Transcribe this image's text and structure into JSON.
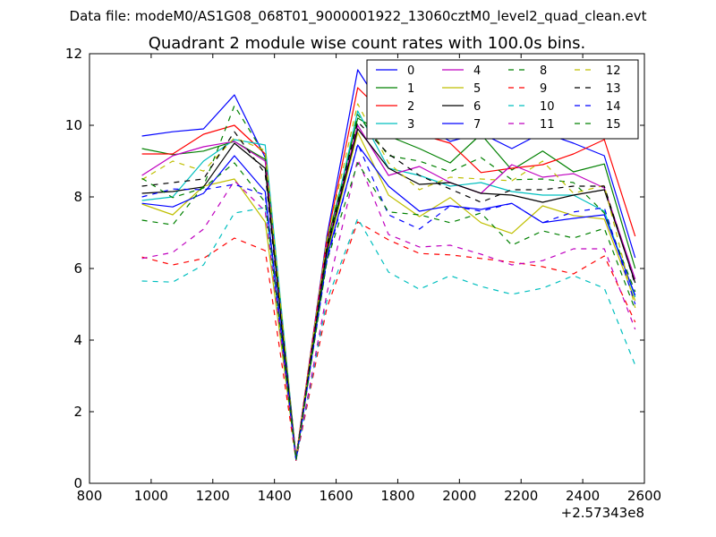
{
  "suptitle": "Data file: modeM0/AS1G08_068T01_9000001922_13060cztM0_level2_quad_clean.evt",
  "chart_data": {
    "type": "line",
    "title": "Quadrant 2 module wise count rates with 100.0s bins.",
    "xlabel": "",
    "ylabel": "",
    "x_offset_label": "+2.57343e8",
    "xlim": [
      800,
      2600
    ],
    "ylim": [
      0,
      12
    ],
    "xticks": [
      800,
      1000,
      1200,
      1400,
      1600,
      1800,
      2000,
      2200,
      2400,
      2600
    ],
    "yticks": [
      0,
      2,
      4,
      6,
      8,
      10,
      12
    ],
    "grid": false,
    "legend_position": "top-right",
    "legend_columns": 4,
    "x": [
      970,
      1070,
      1170,
      1270,
      1370,
      1470,
      1570,
      1670,
      1770,
      1870,
      1970,
      2070,
      2170,
      2270,
      2370,
      2470,
      2570
    ],
    "series": [
      {
        "name": "0",
        "color": "#0000ff",
        "dash": "solid",
        "values": [
          9.7,
          9.82,
          9.9,
          10.85,
          9.1,
          0.7,
          6.9,
          11.55,
          10.2,
          10.05,
          9.55,
          9.78,
          9.35,
          9.8,
          9.5,
          9.15,
          6.3
        ]
      },
      {
        "name": "1",
        "color": "#008000",
        "dash": "solid",
        "values": [
          9.35,
          9.18,
          9.28,
          9.55,
          9.05,
          0.72,
          6.7,
          10.2,
          9.7,
          9.35,
          8.95,
          9.75,
          8.75,
          9.28,
          8.7,
          8.92,
          6.0
        ]
      },
      {
        "name": "2",
        "color": "#ff0000",
        "dash": "solid",
        "values": [
          9.2,
          9.2,
          9.75,
          10.0,
          9.2,
          0.74,
          6.8,
          11.05,
          10.2,
          9.75,
          9.5,
          8.68,
          8.8,
          8.9,
          9.2,
          9.6,
          6.9
        ]
      },
      {
        "name": "3",
        "color": "#00bfbf",
        "dash": "solid",
        "values": [
          7.9,
          8.0,
          9.0,
          9.6,
          9.45,
          0.72,
          6.5,
          10.4,
          8.8,
          8.6,
          8.3,
          8.4,
          8.15,
          8.05,
          8.05,
          7.6,
          5.2
        ]
      },
      {
        "name": "4",
        "color": "#bf00bf",
        "dash": "solid",
        "values": [
          8.6,
          9.15,
          9.4,
          9.55,
          9.0,
          0.7,
          6.6,
          10.0,
          8.6,
          8.85,
          8.4,
          8.1,
          8.9,
          8.55,
          8.65,
          8.25,
          5.7
        ]
      },
      {
        "name": "5",
        "color": "#bfbf00",
        "dash": "solid",
        "values": [
          7.8,
          7.5,
          8.3,
          8.5,
          7.3,
          0.68,
          6.4,
          9.8,
          8.05,
          7.45,
          7.98,
          7.28,
          6.98,
          7.75,
          7.48,
          7.38,
          5.1
        ]
      },
      {
        "name": "6",
        "color": "#000000",
        "dash": "solid",
        "values": [
          8.1,
          8.15,
          8.28,
          9.5,
          8.8,
          0.66,
          6.5,
          9.9,
          8.8,
          8.35,
          8.4,
          8.1,
          8.05,
          7.85,
          8.05,
          8.2,
          5.6
        ]
      },
      {
        "name": "7",
        "color": "#0000ff",
        "dash": "solid",
        "values": [
          7.82,
          7.72,
          8.1,
          9.15,
          8.15,
          0.64,
          6.3,
          9.45,
          8.3,
          7.6,
          7.75,
          7.65,
          7.82,
          7.28,
          7.4,
          7.5,
          5.25
        ]
      },
      {
        "name": "8",
        "color": "#008000",
        "dash": "dashed",
        "values": [
          7.35,
          7.22,
          8.3,
          10.55,
          9.15,
          0.66,
          6.4,
          10.3,
          9.15,
          9.0,
          8.7,
          9.1,
          8.48,
          8.5,
          8.4,
          7.55,
          5.35
        ]
      },
      {
        "name": "9",
        "color": "#ff0000",
        "dash": "dashed",
        "values": [
          6.32,
          6.1,
          6.28,
          6.85,
          6.5,
          0.64,
          4.9,
          7.3,
          6.8,
          6.42,
          6.38,
          6.28,
          6.18,
          6.05,
          5.85,
          6.35,
          4.5
        ]
      },
      {
        "name": "10",
        "color": "#00bfbf",
        "dash": "dashed",
        "values": [
          5.65,
          5.62,
          6.1,
          7.55,
          7.7,
          0.66,
          5.1,
          7.4,
          5.9,
          5.42,
          5.8,
          5.5,
          5.28,
          5.45,
          5.8,
          5.45,
          3.3
        ]
      },
      {
        "name": "11",
        "color": "#bf00bf",
        "dash": "dashed",
        "values": [
          6.28,
          6.45,
          7.1,
          8.45,
          7.6,
          0.66,
          5.3,
          9.05,
          6.95,
          6.6,
          6.65,
          6.4,
          6.1,
          6.22,
          6.55,
          6.55,
          4.3
        ]
      },
      {
        "name": "12",
        "color": "#bfbf00",
        "dash": "dashed",
        "values": [
          8.48,
          9.0,
          8.72,
          9.65,
          9.3,
          0.68,
          6.8,
          10.6,
          8.95,
          8.2,
          8.55,
          8.5,
          8.45,
          9.0,
          8.1,
          8.32,
          4.9
        ]
      },
      {
        "name": "13",
        "color": "#000000",
        "dash": "dashed",
        "values": [
          8.3,
          8.4,
          8.5,
          9.82,
          8.65,
          0.66,
          6.6,
          10.1,
          9.2,
          8.6,
          8.22,
          7.85,
          8.2,
          8.2,
          8.3,
          8.3,
          5.55
        ]
      },
      {
        "name": "14",
        "color": "#0000ff",
        "dash": "dashed",
        "values": [
          8.0,
          8.22,
          8.2,
          8.35,
          8.05,
          0.64,
          6.2,
          9.48,
          7.5,
          7.1,
          7.75,
          7.6,
          7.82,
          7.28,
          7.58,
          7.7,
          5.0
        ]
      },
      {
        "name": "15",
        "color": "#008000",
        "dash": "dashed",
        "values": [
          8.52,
          7.98,
          8.25,
          8.95,
          7.85,
          0.64,
          6.2,
          8.95,
          7.58,
          7.5,
          7.28,
          7.55,
          6.65,
          7.05,
          6.85,
          7.12,
          4.85
        ]
      }
    ]
  }
}
